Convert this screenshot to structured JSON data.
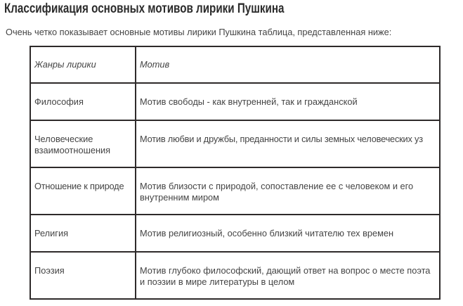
{
  "title": "Классификация основных мотивов лирики Пушкина",
  "intro": "Очень четко показывает основные мотивы лирики Пушкина таблица, представленная ниже:",
  "table": {
    "headers": [
      "Жанры лирики",
      "Мотив"
    ],
    "rows": [
      {
        "genre": "Философия",
        "motif": "Мотив свободы - как внутренней, так и гражданской"
      },
      {
        "genre": "Человеческие взаимоотношения",
        "motif": "Мотив любви и дружбы, преданности и силы земных человеческих уз"
      },
      {
        "genre": "Отношение к природе",
        "motif": "Мотив близости с природой, сопоставление ее с человеком и его внутренним миром"
      },
      {
        "genre": "Религия",
        "motif": "Мотив религиозный, особенно близкий читателю тех времен"
      },
      {
        "genre": "Поэзия",
        "motif": "Мотив глубоко философский, дающий ответ на вопрос о месте поэта и поэзии в мире литературы в целом"
      }
    ]
  }
}
